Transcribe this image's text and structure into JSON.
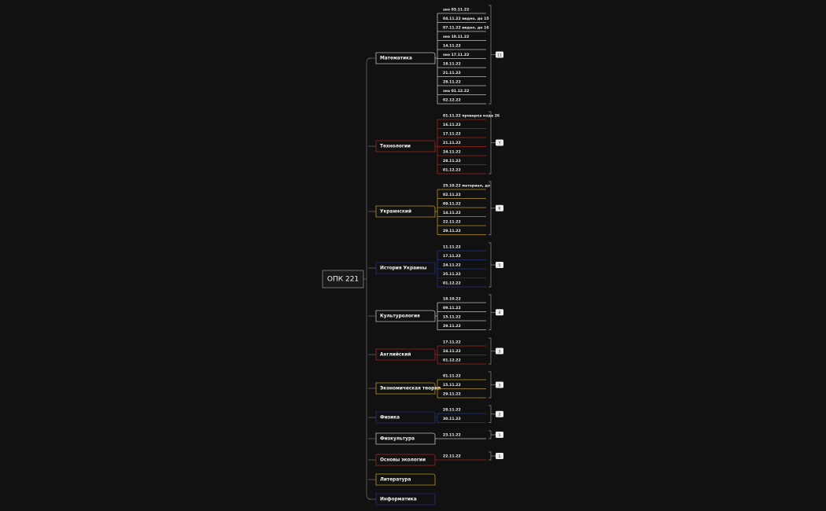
{
  "root": "ОПК 221",
  "branches": [
    {
      "label": "Математика",
      "children": [
        "зно 03.11.22",
        "04.11.22 видео, до 15",
        "07.11.22 видео, до 16",
        "зно 10.11.22",
        "14.11.22",
        "зно 17.11.22",
        "18.11.22",
        "21.11.22",
        "28.11.22",
        "зно 01.12.22",
        "02.12.22"
      ],
      "count": 11
    },
    {
      "label": "Технологии",
      "children": [
        "01.11.22 проверка кода 26",
        "16.11.22",
        "17.11.22",
        "21.11.22",
        "24.11.22",
        "28.11.22",
        "01.12.22"
      ],
      "count": 7
    },
    {
      "label": "Украинский",
      "children": [
        "25.10.22 материал, до",
        "02.11.22",
        "09.11.22",
        "14.11.22",
        "22.11.22",
        "29.11.22"
      ],
      "count": 6
    },
    {
      "label": "История Украины",
      "children": [
        "11.11.22",
        "17.11.22",
        "24.11.22",
        "25.11.22",
        "01.12.22"
      ],
      "count": 5
    },
    {
      "label": "Культурология",
      "children": [
        "18.10.22",
        "09.11.22",
        "15.11.22",
        "29.11.22"
      ],
      "count": 4
    },
    {
      "label": "Английский",
      "children": [
        "17.11.22",
        "24.11.22",
        "01.12.22"
      ],
      "count": 3
    },
    {
      "label": "Экономическая теория",
      "children": [
        "01.11.22",
        "15.11.22",
        "29.11.22"
      ],
      "count": 3
    },
    {
      "label": "Физика",
      "children": [
        "28.11.22",
        "30.11.22"
      ],
      "count": 2
    },
    {
      "label": "Физкультура",
      "children": [
        "23.11.22"
      ],
      "count": 1
    },
    {
      "label": "Основы экологии",
      "children": [
        "22.11.22"
      ],
      "count": 1
    },
    {
      "label": "Литература"
    },
    {
      "label": "Информатика"
    }
  ]
}
